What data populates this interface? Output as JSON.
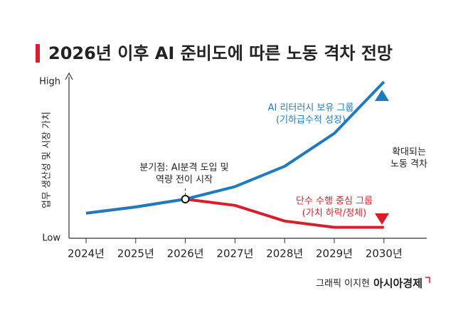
{
  "chart_data": {
    "type": "line",
    "title": "2026년 이후 AI 준비도에 따른 노동 격차 전망",
    "y_label": "업무 생산성 및 시장 가치",
    "categories": [
      "2024년",
      "2025년",
      "2026년",
      "2027년",
      "2028년",
      "2029년",
      "2030년"
    ],
    "series": [
      {
        "name": "AI 리터러시 보유 그룹",
        "note": "(기하급수적 성장)",
        "color": "#1e7bbf",
        "values": [
          16,
          20,
          25,
          33,
          46,
          67,
          100
        ]
      },
      {
        "name": "단수 수행 중심 그룹",
        "note": "(가치 하락/정체)",
        "color": "#d81e2a",
        "values": [
          16,
          20,
          25,
          21,
          11,
          7,
          7
        ]
      }
    ],
    "ylim": [
      0,
      100
    ],
    "yticks": [
      {
        "value": 0,
        "label": "Low"
      },
      {
        "value": 100,
        "label": "High"
      }
    ],
    "grid": false,
    "annotations": [
      "분기점: AI분격 도입 및",
      "역량 전이 시작",
      "확대되는",
      "노동 격차"
    ],
    "source": "그래픽 이지현",
    "publisher": "아시아경제"
  }
}
